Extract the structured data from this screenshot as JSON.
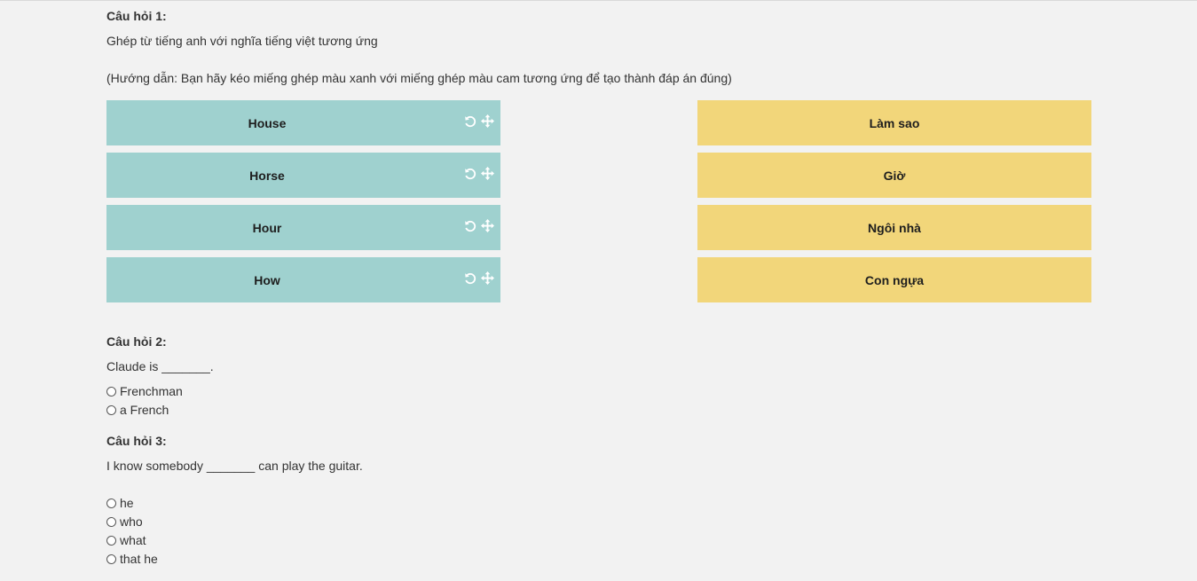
{
  "questions": [
    {
      "title": "Câu hỏi 1:",
      "text": "Ghép từ tiếng anh với nghĩa tiếng việt tương ứng",
      "instruction": "(Hướng dẫn: Bạn hãy kéo miếng ghép màu xanh với miếng ghép màu cam tương ứng để tạo thành đáp án đúng)",
      "left_tiles": [
        "House",
        "Horse",
        "Hour",
        "How"
      ],
      "right_tiles": [
        "Làm sao",
        "Giờ",
        "Ngôi nhà",
        "Con ngựa"
      ],
      "tile_icons": [
        "undo-icon",
        "move-icon"
      ],
      "left_color": "#9fd1cf",
      "right_color": "#f2d67a"
    },
    {
      "title": "Câu hỏi 2:",
      "text": "Claude is _______.",
      "options": [
        "Frenchman",
        "a French"
      ]
    },
    {
      "title": "Câu hỏi 3:",
      "text": "I know somebody _______ can play the guitar.",
      "options": [
        "he",
        "who",
        "what",
        "that he"
      ]
    }
  ]
}
